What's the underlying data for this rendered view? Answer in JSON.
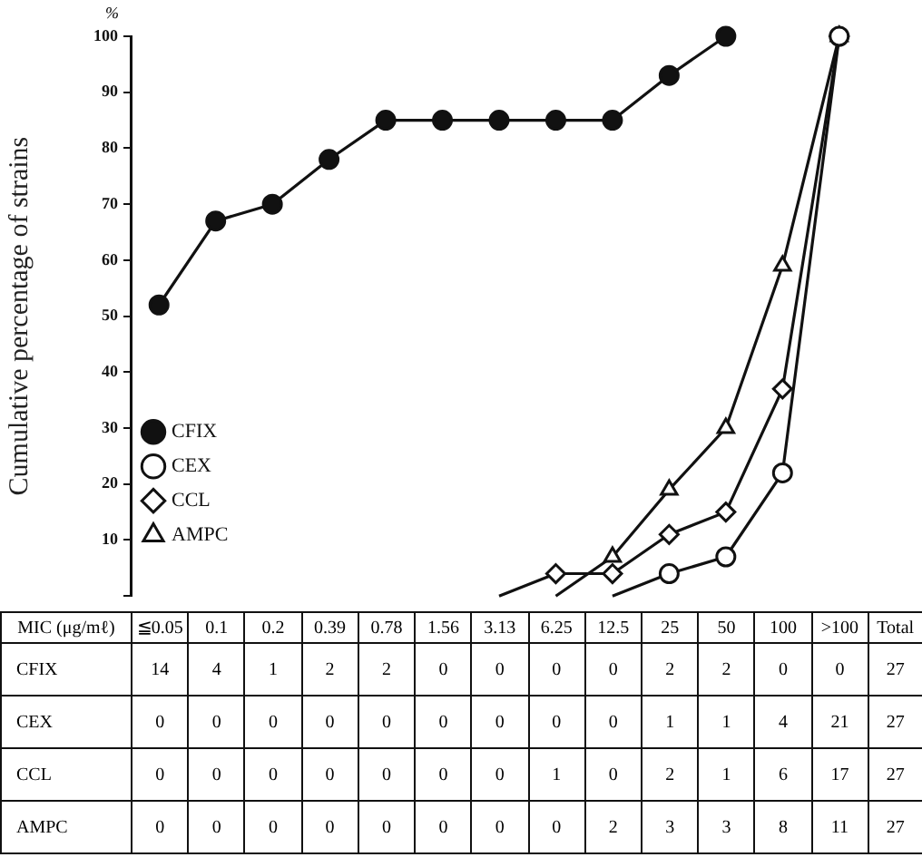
{
  "chart_data": [
    {
      "type": "line",
      "ylabel": "Cumulative percentage of strains",
      "annotations": [
        "%"
      ],
      "categories": [
        null,
        null,
        null,
        null,
        null,
        null,
        null,
        null,
        null,
        null,
        null,
        null,
        null
      ],
      "ylim": [
        0,
        100
      ],
      "yticks": [
        {
          "value": 0,
          "label": null
        },
        10,
        20,
        30,
        40,
        50,
        60,
        70,
        80,
        90,
        100
      ],
      "grid": false,
      "legend": "left",
      "line_style": "solid",
      "series": [
        {
          "name": "CFIX",
          "color": "#111111",
          "marker": "circle",
          "values": [
            52,
            67,
            70,
            78,
            85,
            85,
            85,
            85,
            85,
            93,
            100,
            null,
            null
          ]
        },
        {
          "name": "CEX",
          "color": "#111111",
          "marker": "circle",
          "values": [
            null,
            null,
            null,
            null,
            null,
            null,
            null,
            null,
            0,
            4,
            7,
            22,
            100
          ]
        },
        {
          "name": "CCL",
          "color": "#111111",
          "marker": "diamond",
          "values": [
            null,
            null,
            null,
            null,
            null,
            null,
            0,
            4,
            4,
            11,
            15,
            37,
            100
          ]
        },
        {
          "name": "AMPC",
          "color": "#111111",
          "marker": "triangle",
          "values": [
            null,
            null,
            null,
            null,
            null,
            null,
            null,
            0,
            7,
            19,
            30,
            59,
            100
          ]
        }
      ]
    },
    {
      "type": "heatmap",
      "data_labels": true,
      "xlabel": "MIC (μg/mℓ)",
      "categories": [
        "≦0.05",
        "0.1",
        "0.2",
        "0.39",
        "0.78",
        "1.56",
        "3.13",
        "6.25",
        "12.5",
        "25",
        "50",
        "100",
        ">100",
        "Total"
      ],
      "y_categories": [
        "CFIX",
        "CEX",
        "CCL",
        "AMPC"
      ],
      "cells": [
        [
          14,
          4,
          1,
          2,
          2,
          0,
          0,
          0,
          0,
          2,
          2,
          0,
          0,
          27
        ],
        [
          0,
          0,
          0,
          0,
          0,
          0,
          0,
          0,
          0,
          1,
          1,
          4,
          21,
          27
        ],
        [
          0,
          0,
          0,
          0,
          0,
          0,
          0,
          1,
          0,
          2,
          1,
          6,
          17,
          27
        ],
        [
          0,
          0,
          0,
          0,
          0,
          0,
          0,
          0,
          2,
          3,
          3,
          8,
          11,
          27
        ]
      ]
    }
  ]
}
